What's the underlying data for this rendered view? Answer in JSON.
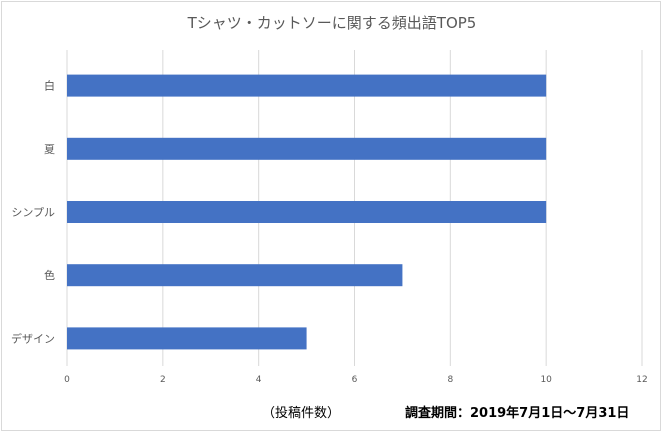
{
  "chart_data": {
    "type": "bar",
    "orientation": "horizontal",
    "title": "Tシャツ・カットソーに関する頻出語TOP5",
    "categories": [
      "白",
      "夏",
      "シンプル",
      "色",
      "デザイン"
    ],
    "values": [
      10,
      10,
      10,
      7,
      5
    ],
    "xlabel": "（投稿件数）",
    "ylabel": "",
    "xlim": [
      0,
      12
    ],
    "xticks": [
      0,
      2,
      4,
      6,
      8,
      10,
      12
    ],
    "grid": true,
    "bar_color": "#4472c4",
    "annotation": "調査期間：2019年7月1日〜7月31日"
  }
}
